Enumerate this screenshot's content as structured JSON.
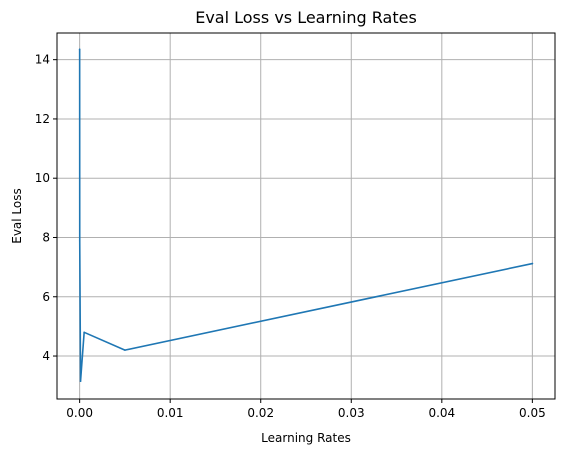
{
  "chart_data": {
    "type": "line",
    "title": "Eval Loss vs Learning Rates",
    "xlabel": "Learning Rates",
    "ylabel": "Eval Loss",
    "xlim": [
      -0.0025,
      0.0525
    ],
    "ylim": [
      2.55,
      14.9
    ],
    "xticks": [
      0,
      0.01,
      0.02,
      0.03,
      0.04,
      0.05
    ],
    "xtick_labels": [
      "0.00",
      "0.01",
      "0.02",
      "0.03",
      "0.04",
      "0.05"
    ],
    "yticks": [
      4,
      6,
      8,
      10,
      12,
      14
    ],
    "ytick_labels": [
      "4",
      "6",
      "8",
      "10",
      "12",
      "14"
    ],
    "grid": true,
    "series": [
      {
        "color": "#1f77b4",
        "x": [
          1e-06,
          1e-05,
          0.0001,
          0.0005,
          0.005,
          0.05
        ],
        "y": [
          14.35,
          7.9,
          3.15,
          4.8,
          4.2,
          7.12
        ]
      }
    ]
  }
}
